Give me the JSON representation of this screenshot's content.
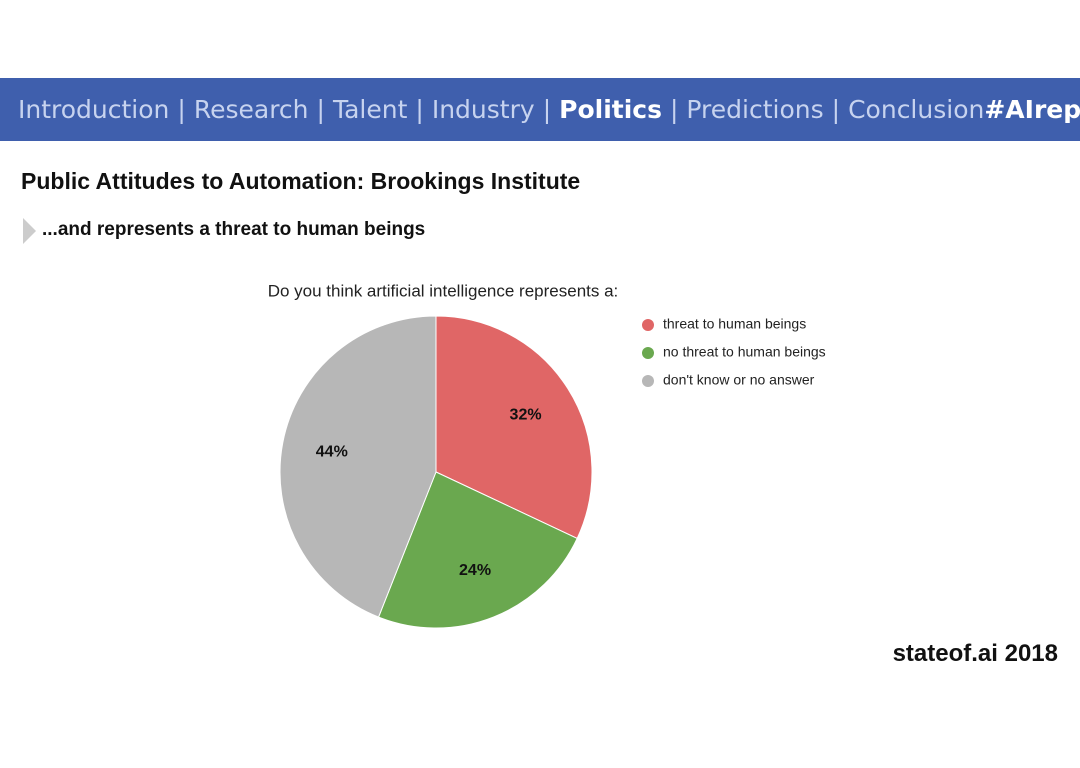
{
  "nav": {
    "items": [
      "Introduction",
      "Research",
      "Talent",
      "Industry",
      "Politics",
      "Predictions",
      "Conclusion"
    ],
    "active": 4,
    "separator": "|",
    "hashtag": "#AIreport"
  },
  "header": {
    "title": "Public Attitudes to Automation: Brookings Institute",
    "subtitle": "...and represents a threat to human beings"
  },
  "chart_data": {
    "type": "pie",
    "title": "Do you think artificial intelligence represents a:",
    "categories": [
      "threat to human beings",
      "no threat to human beings",
      "don't know or no answer"
    ],
    "values": [
      32,
      24,
      44
    ],
    "value_labels": [
      "32%",
      "24%",
      "44%"
    ],
    "colors": [
      "#e06666",
      "#6aa84f",
      "#b7b7b7"
    ],
    "legend": "right"
  },
  "footer": {
    "brand": "stateof.ai 2018"
  }
}
